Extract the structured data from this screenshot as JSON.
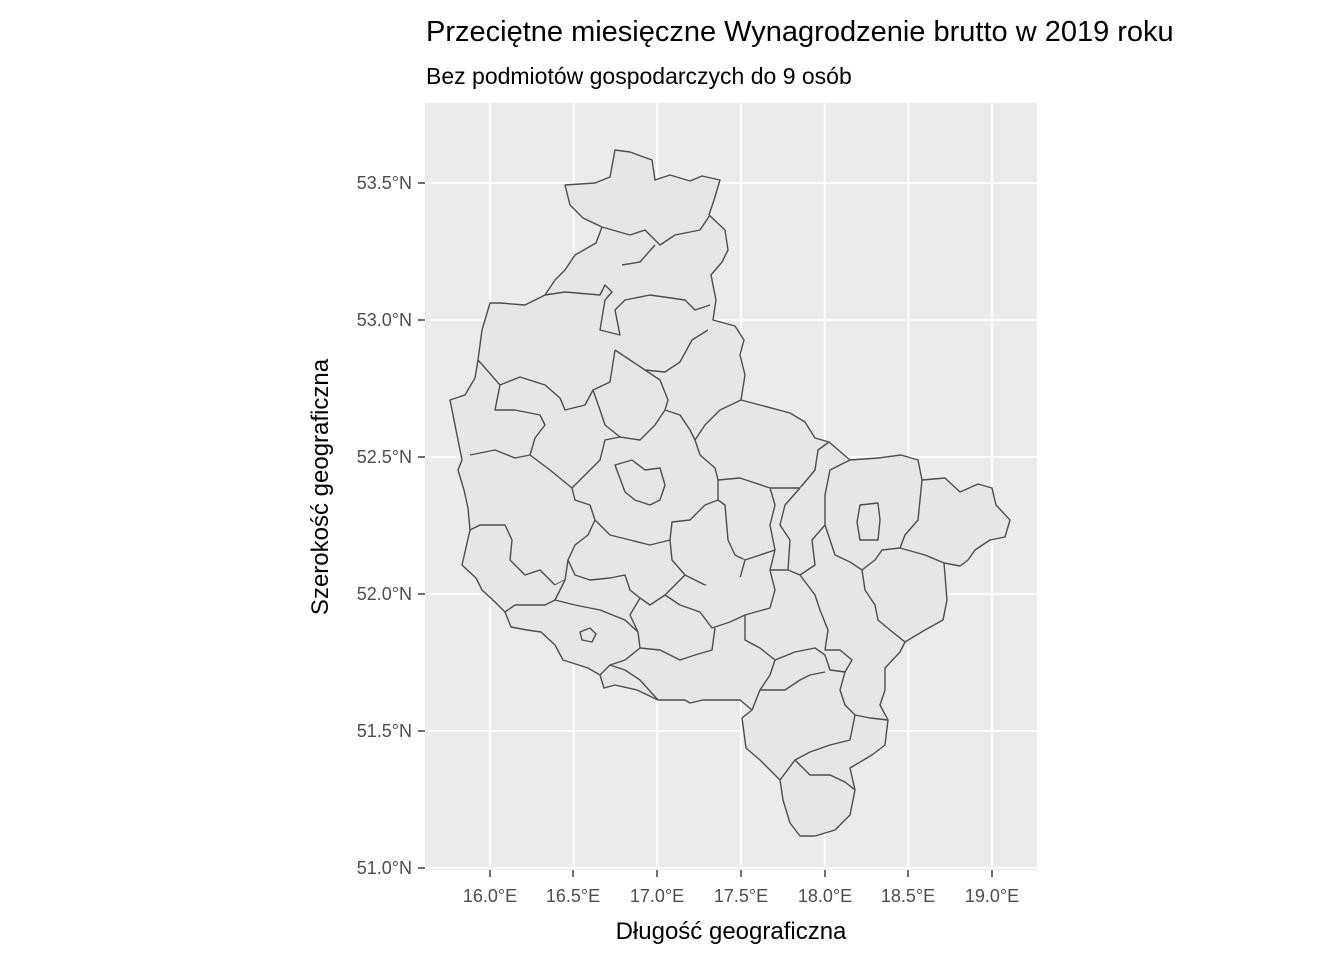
{
  "chart_data": {
    "type": "map",
    "title": "Przeciętne miesięczne Wynagrodzenie brutto w 2019 roku",
    "subtitle": "Bez podmiotów gospodarczych do 9 osób",
    "xlabel": "Długość geograficzna",
    "ylabel": "Szerokość geograficzna",
    "x_ticks": [
      "16.0°E",
      "16.5°E",
      "17.0°E",
      "17.5°E",
      "18.0°E",
      "18.5°E",
      "19.0°E"
    ],
    "y_ticks": [
      "51.0°N",
      "51.5°N",
      "52.0°N",
      "52.5°N",
      "53.0°N",
      "53.5°N"
    ],
    "xlim": [
      15.6,
      19.25
    ],
    "ylim": [
      50.97,
      53.67
    ],
    "grid": true,
    "legend": "none",
    "colors": {
      "panel_background": "#ebebeb",
      "gridline": "#ffffff",
      "region_fill": "#e6e6e6",
      "region_stroke": "#4d4d4d"
    }
  }
}
